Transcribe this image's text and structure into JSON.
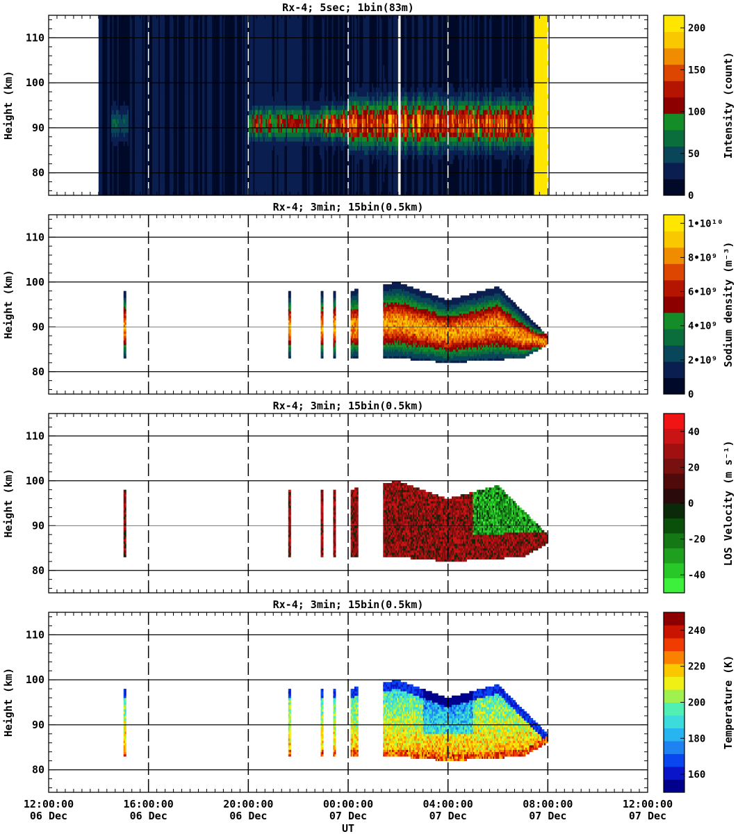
{
  "x_ticks": [
    {
      "time": "12:00:00",
      "date": "06 Dec",
      "t": 0
    },
    {
      "time": "16:00:00",
      "date": "06 Dec",
      "t": 4
    },
    {
      "time": "20:00:00",
      "date": "06 Dec",
      "t": 8
    },
    {
      "time": "00:00:00",
      "date": "07 Dec",
      "t": 12
    },
    {
      "time": "04:00:00",
      "date": "07 Dec",
      "t": 16
    },
    {
      "time": "08:00:00",
      "date": "07 Dec",
      "t": 20
    },
    {
      "time": "12:00:00",
      "date": "07 Dec",
      "t": 24
    }
  ],
  "xlabel": "UT",
  "panels": [
    {
      "title": "Rx-4;  5sec; 1bin(83m)",
      "ylabel": "Height (km)",
      "ylim": [
        75,
        115
      ],
      "yticks": [
        "80",
        "90",
        "100",
        "110"
      ],
      "colorbar": {
        "label": "Intensity (count)",
        "ticks": [
          {
            "v": 0,
            "t": "0"
          },
          {
            "v": 50,
            "t": "50"
          },
          {
            "v": 100,
            "t": "100"
          },
          {
            "v": 150,
            "t": "150"
          },
          {
            "v": 200,
            "t": "200"
          }
        ],
        "range": [
          0,
          215
        ],
        "colors": [
          "#000a28",
          "#0a1e50",
          "#0a465a",
          "#0a6e3c",
          "#148c28",
          "#8c0000",
          "#b41400",
          "#dc4600",
          "#f08c00",
          "#fac800",
          "#ffe600"
        ]
      }
    },
    {
      "title": "Rx-4; 3min; 15bin(0.5km)",
      "ylabel": "Height (km)",
      "ylim": [
        75,
        115
      ],
      "yticks": [
        "80",
        "90",
        "100",
        "110"
      ],
      "colorbar": {
        "label": "Sodium density (m⁻³)",
        "ticks": [
          {
            "v": 0,
            "t": "0"
          },
          {
            "v": 2,
            "t": "2•10⁹"
          },
          {
            "v": 4,
            "t": "4•10⁹"
          },
          {
            "v": 6,
            "t": "6•10⁹"
          },
          {
            "v": 8,
            "t": "8•10⁹"
          },
          {
            "v": 10,
            "t": "1•10¹⁰"
          }
        ],
        "range": [
          0,
          10.5
        ],
        "colors": [
          "#000a28",
          "#0a1e50",
          "#0a465a",
          "#0a6e3c",
          "#148c28",
          "#8c0000",
          "#b41400",
          "#dc4600",
          "#f08c00",
          "#fac800",
          "#ffe600"
        ]
      }
    },
    {
      "title": "Rx-4; 3min; 15bin(0.5km)",
      "ylabel": "Height (km)",
      "ylim": [
        75,
        115
      ],
      "yticks": [
        "80",
        "90",
        "100",
        "110"
      ],
      "colorbar": {
        "label": "LOS Velocity (m s⁻¹)",
        "ticks": [
          {
            "v": -40,
            "t": "-40"
          },
          {
            "v": -20,
            "t": "-20"
          },
          {
            "v": 0,
            "t": "0"
          },
          {
            "v": 20,
            "t": "20"
          },
          {
            "v": 40,
            "t": "40"
          }
        ],
        "range": [
          -50,
          50
        ],
        "colors": [
          "#3cf03c",
          "#28c828",
          "#1ea01e",
          "#147814",
          "#0a500a",
          "#0a2a0a",
          "#2a0a0a",
          "#500a0a",
          "#781010",
          "#a01010",
          "#c81414",
          "#f01414"
        ]
      }
    },
    {
      "title": "Rx-4; 3min; 15bin(0.5km)",
      "ylabel": "Height (km)",
      "ylim": [
        75,
        115
      ],
      "yticks": [
        "80",
        "90",
        "100",
        "110"
      ],
      "colorbar": {
        "label": "Temperature (K)",
        "ticks": [
          {
            "v": 160,
            "t": "160"
          },
          {
            "v": 180,
            "t": "180"
          },
          {
            "v": 200,
            "t": "200"
          },
          {
            "v": 220,
            "t": "220"
          },
          {
            "v": 240,
            "t": "240"
          }
        ],
        "range": [
          150,
          250
        ],
        "colors": [
          "#00008c",
          "#0a14c8",
          "#0a46f0",
          "#1e82f0",
          "#28b4f0",
          "#3cdcdc",
          "#50f0b4",
          "#a0f050",
          "#f0f014",
          "#fac800",
          "#fa8200",
          "#f03c00",
          "#c81400",
          "#8c0000"
        ]
      }
    }
  ],
  "chart_data": {
    "type": "heatmap",
    "x_unit": "hours since 12:00:00 06 Dec (UT)",
    "xlim": [
      0,
      24
    ],
    "ylim": [
      75,
      115
    ],
    "panels": [
      {
        "title": "Rx-4;  5sec; 1bin(83m)",
        "quantity": "Intensity",
        "unit": "count",
        "range": [
          0,
          200
        ],
        "coverage": {
          "start": 2.0,
          "end": 20.0
        },
        "layer_center_km": 91,
        "peak_value": 200
      },
      {
        "title": "Rx-4; 3min; 15bin(0.5km)",
        "quantity": "Sodium density",
        "unit": "m^-3",
        "range": [
          0,
          10000000000.0
        ],
        "segments": [
          [
            3.0,
            3.1
          ],
          [
            9.6,
            9.7
          ],
          [
            10.9,
            11.0
          ],
          [
            11.4,
            11.5
          ],
          [
            12.1,
            12.4
          ],
          [
            13.4,
            20.0
          ]
        ],
        "layer_bottom_km": [
          [
            12.0,
            83
          ],
          [
            14.0,
            83
          ],
          [
            16.0,
            82
          ],
          [
            19.0,
            83
          ],
          [
            20.0,
            86
          ]
        ],
        "layer_top_km": [
          [
            12.0,
            98
          ],
          [
            14.0,
            100
          ],
          [
            16.0,
            96
          ],
          [
            18.0,
            99
          ],
          [
            20.0,
            88
          ]
        ]
      },
      {
        "title": "Rx-4; 3min; 15bin(0.5km)",
        "quantity": "LOS Velocity",
        "unit": "m s^-1",
        "range": [
          -50,
          50
        ],
        "segments": [
          [
            3.0,
            3.1
          ],
          [
            9.6,
            9.7
          ],
          [
            10.9,
            11.0
          ],
          [
            11.4,
            11.5
          ],
          [
            12.1,
            12.4
          ],
          [
            13.4,
            20.0
          ]
        ]
      },
      {
        "title": "Rx-4; 3min; 15bin(0.5km)",
        "quantity": "Temperature",
        "unit": "K",
        "range": [
          150,
          250
        ],
        "segments": [
          [
            3.0,
            3.1
          ],
          [
            9.6,
            9.7
          ],
          [
            10.9,
            11.0
          ],
          [
            11.4,
            11.5
          ],
          [
            12.1,
            12.4
          ],
          [
            13.4,
            20.0
          ]
        ]
      }
    ]
  }
}
